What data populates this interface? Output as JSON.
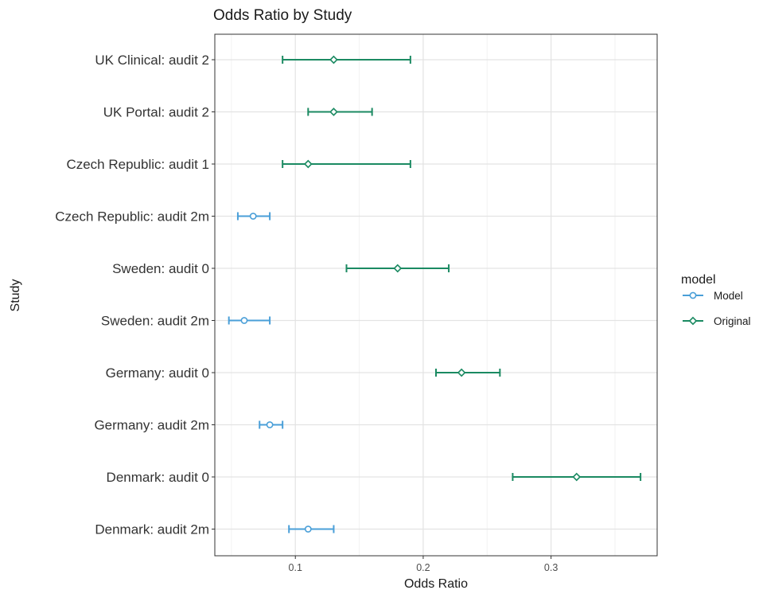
{
  "chart_data": {
    "type": "scatter",
    "subtype": "forest-plot-errorbars",
    "title": "Odds Ratio by Study",
    "xlabel": "Odds Ratio",
    "ylabel": "Study",
    "xlim": [
      0.037,
      0.383
    ],
    "x_ticks": [
      0.1,
      0.2,
      0.3
    ],
    "grid": true,
    "legend": {
      "title": "model",
      "position": "right"
    },
    "categories": [
      "UK Clinical: audit 2",
      "UK Portal: audit 2",
      "Czech Republic: audit 1",
      "Czech Republic: audit 2m",
      "Sweden: audit 0",
      "Sweden: audit 2m",
      "Germany: audit 0",
      "Germany: audit 2m",
      "Denmark: audit 0",
      "Denmark: audit 2m"
    ],
    "series": [
      {
        "name": "Model",
        "color": "#4a9fd8",
        "points": [
          {
            "study": "Czech Republic: audit 2m",
            "value": 0.067,
            "lower": 0.055,
            "upper": 0.08
          },
          {
            "study": "Sweden: audit 2m",
            "value": 0.06,
            "lower": 0.048,
            "upper": 0.08
          },
          {
            "study": "Germany: audit 2m",
            "value": 0.08,
            "lower": 0.072,
            "upper": 0.09
          },
          {
            "study": "Denmark: audit 2m",
            "value": 0.11,
            "lower": 0.095,
            "upper": 0.13
          }
        ]
      },
      {
        "name": "Original",
        "color": "#1b8a62",
        "points": [
          {
            "study": "UK Clinical: audit 2",
            "value": 0.13,
            "lower": 0.09,
            "upper": 0.19
          },
          {
            "study": "UK Portal: audit 2",
            "value": 0.13,
            "lower": 0.11,
            "upper": 0.16
          },
          {
            "study": "Czech Republic: audit 1",
            "value": 0.11,
            "lower": 0.09,
            "upper": 0.19
          },
          {
            "study": "Sweden: audit 0",
            "value": 0.18,
            "lower": 0.14,
            "upper": 0.22
          },
          {
            "study": "Germany: audit 0",
            "value": 0.23,
            "lower": 0.21,
            "upper": 0.26
          },
          {
            "study": "Denmark: audit 0",
            "value": 0.32,
            "lower": 0.27,
            "upper": 0.37
          }
        ]
      }
    ]
  },
  "colors": {
    "grid_major": "#e3e3e3",
    "grid_minor": "#f2f2f2",
    "panel_border": "#333333",
    "background": "#ffffff"
  }
}
